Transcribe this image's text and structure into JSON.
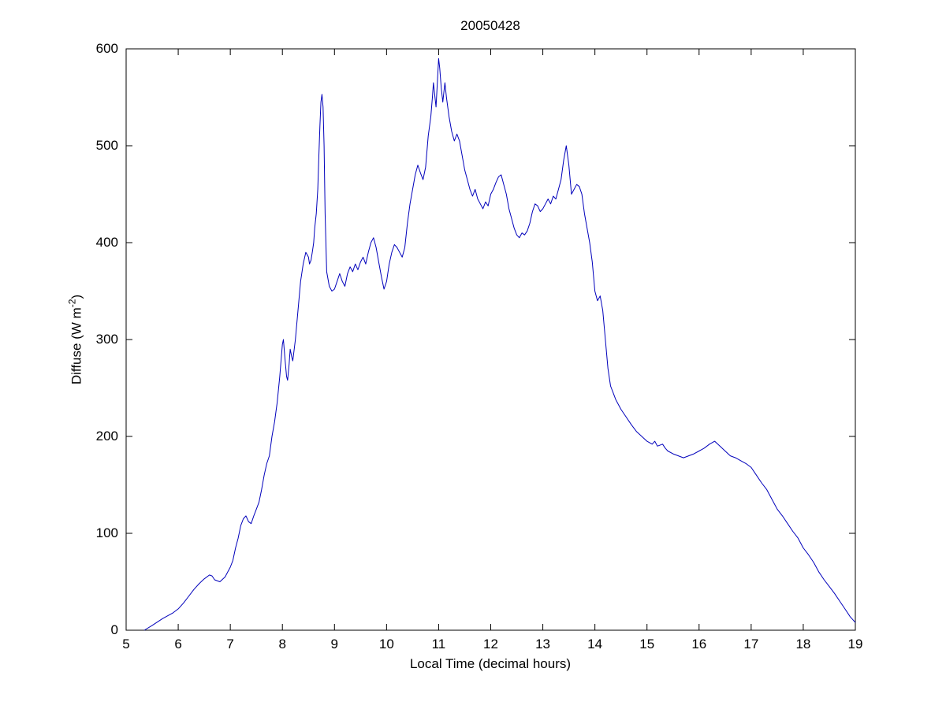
{
  "chart_data": {
    "type": "line",
    "title": "20050428",
    "xlabel": "Local Time (decimal hours)",
    "ylabel": "Diffuse (W m^-2)",
    "ylabel_parts": {
      "main": "Diffuse (W m",
      "sup": "-2",
      "close": ")"
    },
    "xlim": [
      5,
      19
    ],
    "ylim": [
      0,
      600
    ],
    "x_ticks": [
      5,
      6,
      7,
      8,
      9,
      10,
      11,
      12,
      13,
      14,
      15,
      16,
      17,
      18,
      19
    ],
    "y_ticks": [
      0,
      100,
      200,
      300,
      400,
      500,
      600
    ],
    "grid": false,
    "legend": "none",
    "line_color": "#0000bb",
    "axis_color": "#000000",
    "series": [
      {
        "name": "diffuse",
        "points": [
          [
            5.35,
            0
          ],
          [
            5.5,
            5
          ],
          [
            5.7,
            12
          ],
          [
            5.9,
            18
          ],
          [
            6.0,
            22
          ],
          [
            6.1,
            28
          ],
          [
            6.2,
            35
          ],
          [
            6.3,
            42
          ],
          [
            6.4,
            48
          ],
          [
            6.5,
            53
          ],
          [
            6.6,
            57
          ],
          [
            6.65,
            56
          ],
          [
            6.7,
            52
          ],
          [
            6.8,
            50
          ],
          [
            6.9,
            55
          ],
          [
            7.0,
            65
          ],
          [
            7.05,
            72
          ],
          [
            7.1,
            85
          ],
          [
            7.15,
            95
          ],
          [
            7.2,
            108
          ],
          [
            7.25,
            115
          ],
          [
            7.3,
            118
          ],
          [
            7.35,
            112
          ],
          [
            7.4,
            110
          ],
          [
            7.45,
            118
          ],
          [
            7.5,
            125
          ],
          [
            7.55,
            132
          ],
          [
            7.6,
            145
          ],
          [
            7.65,
            160
          ],
          [
            7.7,
            172
          ],
          [
            7.75,
            180
          ],
          [
            7.8,
            200
          ],
          [
            7.85,
            215
          ],
          [
            7.9,
            235
          ],
          [
            7.95,
            262
          ],
          [
            8.0,
            295
          ],
          [
            8.02,
            300
          ],
          [
            8.05,
            280
          ],
          [
            8.08,
            262
          ],
          [
            8.1,
            258
          ],
          [
            8.13,
            275
          ],
          [
            8.15,
            290
          ],
          [
            8.18,
            282
          ],
          [
            8.2,
            278
          ],
          [
            8.25,
            300
          ],
          [
            8.3,
            330
          ],
          [
            8.35,
            360
          ],
          [
            8.4,
            378
          ],
          [
            8.45,
            390
          ],
          [
            8.5,
            385
          ],
          [
            8.52,
            378
          ],
          [
            8.55,
            382
          ],
          [
            8.58,
            392
          ],
          [
            8.6,
            400
          ],
          [
            8.62,
            415
          ],
          [
            8.65,
            430
          ],
          [
            8.68,
            455
          ],
          [
            8.7,
            490
          ],
          [
            8.72,
            520
          ],
          [
            8.74,
            545
          ],
          [
            8.76,
            553
          ],
          [
            8.78,
            540
          ],
          [
            8.8,
            500
          ],
          [
            8.82,
            430
          ],
          [
            8.85,
            370
          ],
          [
            8.9,
            355
          ],
          [
            8.95,
            350
          ],
          [
            9.0,
            352
          ],
          [
            9.05,
            360
          ],
          [
            9.1,
            368
          ],
          [
            9.15,
            360
          ],
          [
            9.2,
            355
          ],
          [
            9.25,
            368
          ],
          [
            9.3,
            375
          ],
          [
            9.35,
            370
          ],
          [
            9.4,
            378
          ],
          [
            9.45,
            372
          ],
          [
            9.5,
            380
          ],
          [
            9.55,
            385
          ],
          [
            9.6,
            378
          ],
          [
            9.65,
            390
          ],
          [
            9.7,
            400
          ],
          [
            9.75,
            405
          ],
          [
            9.8,
            395
          ],
          [
            9.85,
            380
          ],
          [
            9.9,
            365
          ],
          [
            9.95,
            352
          ],
          [
            10.0,
            360
          ],
          [
            10.05,
            378
          ],
          [
            10.1,
            390
          ],
          [
            10.15,
            398
          ],
          [
            10.2,
            395
          ],
          [
            10.25,
            390
          ],
          [
            10.3,
            385
          ],
          [
            10.35,
            395
          ],
          [
            10.4,
            420
          ],
          [
            10.45,
            440
          ],
          [
            10.5,
            455
          ],
          [
            10.55,
            470
          ],
          [
            10.6,
            480
          ],
          [
            10.65,
            472
          ],
          [
            10.7,
            465
          ],
          [
            10.75,
            478
          ],
          [
            10.8,
            510
          ],
          [
            10.85,
            530
          ],
          [
            10.88,
            550
          ],
          [
            10.9,
            565
          ],
          [
            10.92,
            555
          ],
          [
            10.95,
            540
          ],
          [
            10.98,
            570
          ],
          [
            11.0,
            590
          ],
          [
            11.02,
            580
          ],
          [
            11.05,
            560
          ],
          [
            11.08,
            545
          ],
          [
            11.1,
            555
          ],
          [
            11.12,
            565
          ],
          [
            11.15,
            550
          ],
          [
            11.2,
            530
          ],
          [
            11.25,
            515
          ],
          [
            11.3,
            505
          ],
          [
            11.35,
            512
          ],
          [
            11.4,
            505
          ],
          [
            11.45,
            490
          ],
          [
            11.5,
            475
          ],
          [
            11.55,
            465
          ],
          [
            11.6,
            455
          ],
          [
            11.65,
            448
          ],
          [
            11.7,
            455
          ],
          [
            11.75,
            445
          ],
          [
            11.8,
            440
          ],
          [
            11.85,
            435
          ],
          [
            11.9,
            442
          ],
          [
            11.95,
            438
          ],
          [
            12.0,
            450
          ],
          [
            12.05,
            455
          ],
          [
            12.1,
            462
          ],
          [
            12.15,
            468
          ],
          [
            12.2,
            470
          ],
          [
            12.25,
            460
          ],
          [
            12.3,
            450
          ],
          [
            12.35,
            435
          ],
          [
            12.4,
            425
          ],
          [
            12.45,
            415
          ],
          [
            12.5,
            408
          ],
          [
            12.55,
            405
          ],
          [
            12.6,
            410
          ],
          [
            12.65,
            408
          ],
          [
            12.7,
            412
          ],
          [
            12.75,
            420
          ],
          [
            12.8,
            432
          ],
          [
            12.85,
            440
          ],
          [
            12.9,
            438
          ],
          [
            12.95,
            432
          ],
          [
            13.0,
            435
          ],
          [
            13.05,
            440
          ],
          [
            13.1,
            445
          ],
          [
            13.15,
            440
          ],
          [
            13.2,
            448
          ],
          [
            13.25,
            445
          ],
          [
            13.3,
            455
          ],
          [
            13.35,
            465
          ],
          [
            13.4,
            485
          ],
          [
            13.45,
            500
          ],
          [
            13.5,
            480
          ],
          [
            13.55,
            450
          ],
          [
            13.6,
            455
          ],
          [
            13.65,
            460
          ],
          [
            13.7,
            458
          ],
          [
            13.75,
            450
          ],
          [
            13.8,
            430
          ],
          [
            13.85,
            415
          ],
          [
            13.9,
            400
          ],
          [
            13.95,
            380
          ],
          [
            14.0,
            350
          ],
          [
            14.05,
            340
          ],
          [
            14.1,
            345
          ],
          [
            14.15,
            330
          ],
          [
            14.2,
            300
          ],
          [
            14.25,
            270
          ],
          [
            14.3,
            252
          ],
          [
            14.35,
            245
          ],
          [
            14.4,
            238
          ],
          [
            14.5,
            228
          ],
          [
            14.6,
            220
          ],
          [
            14.7,
            212
          ],
          [
            14.8,
            205
          ],
          [
            14.9,
            200
          ],
          [
            15.0,
            195
          ],
          [
            15.1,
            192
          ],
          [
            15.15,
            195
          ],
          [
            15.2,
            190
          ],
          [
            15.3,
            192
          ],
          [
            15.35,
            188
          ],
          [
            15.4,
            185
          ],
          [
            15.5,
            182
          ],
          [
            15.6,
            180
          ],
          [
            15.7,
            178
          ],
          [
            15.8,
            180
          ],
          [
            15.9,
            182
          ],
          [
            16.0,
            185
          ],
          [
            16.1,
            188
          ],
          [
            16.2,
            192
          ],
          [
            16.3,
            195
          ],
          [
            16.4,
            190
          ],
          [
            16.5,
            185
          ],
          [
            16.6,
            180
          ],
          [
            16.7,
            178
          ],
          [
            16.8,
            175
          ],
          [
            16.9,
            172
          ],
          [
            17.0,
            168
          ],
          [
            17.1,
            160
          ],
          [
            17.2,
            152
          ],
          [
            17.3,
            145
          ],
          [
            17.4,
            135
          ],
          [
            17.5,
            125
          ],
          [
            17.6,
            118
          ],
          [
            17.7,
            110
          ],
          [
            17.8,
            102
          ],
          [
            17.9,
            95
          ],
          [
            18.0,
            85
          ],
          [
            18.1,
            78
          ],
          [
            18.2,
            70
          ],
          [
            18.3,
            60
          ],
          [
            18.4,
            52
          ],
          [
            18.5,
            45
          ],
          [
            18.6,
            38
          ],
          [
            18.7,
            30
          ],
          [
            18.8,
            22
          ],
          [
            18.9,
            14
          ],
          [
            19.0,
            8
          ]
        ]
      }
    ]
  }
}
